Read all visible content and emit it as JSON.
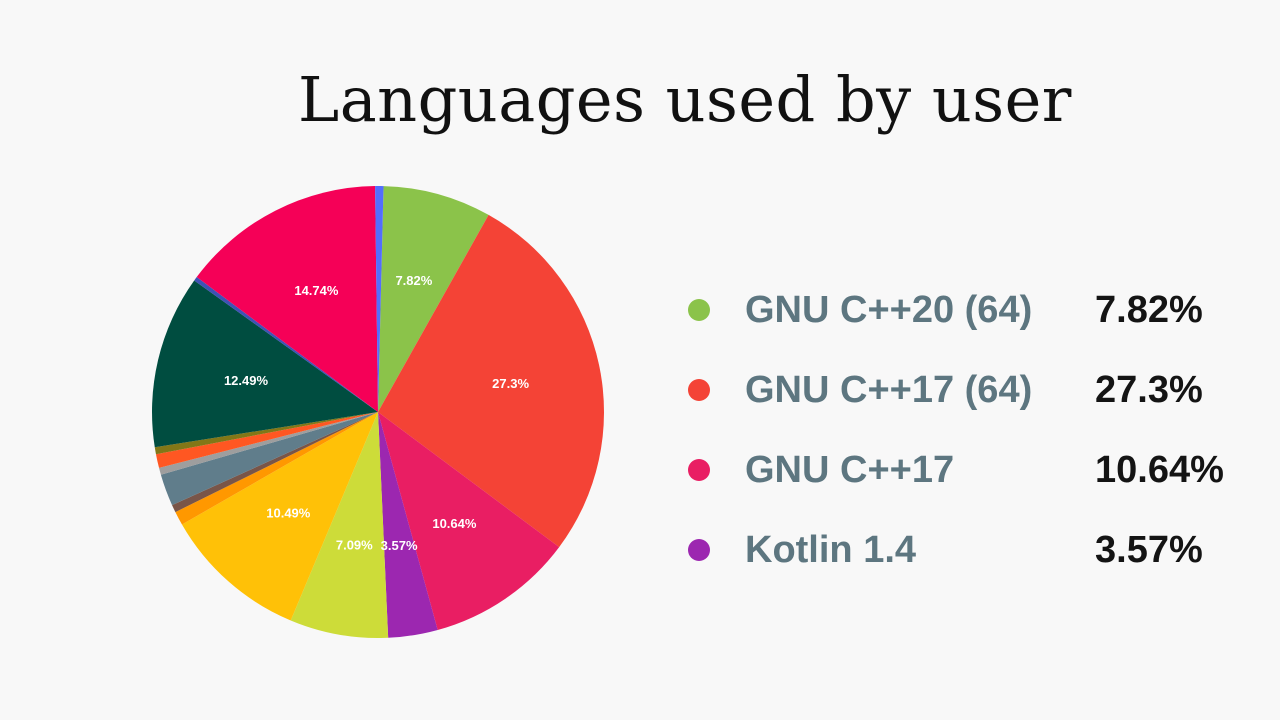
{
  "chart_data": {
    "type": "pie",
    "title": "Languages used by user",
    "slices": [
      {
        "name": "GNU C++20 (64)",
        "value": 7.82,
        "label": "7.82%",
        "color": "#8bc34a"
      },
      {
        "name": "GNU C++17 (64)",
        "value": 27.3,
        "label": "27.3%",
        "color": "#f44336"
      },
      {
        "name": "GNU C++17",
        "value": 10.64,
        "label": "10.64%",
        "color": "#e91e63"
      },
      {
        "name": "Kotlin 1.4",
        "value": 3.57,
        "label": "3.57%",
        "color": "#9c27b0"
      },
      {
        "name": "",
        "value": 7.09,
        "label": "7.09%",
        "color": "#cddc39"
      },
      {
        "name": "",
        "value": 10.49,
        "label": "10.49%",
        "color": "#ffc107"
      },
      {
        "name": "",
        "value": 1.0,
        "label": "",
        "color": "#ff9800"
      },
      {
        "name": "",
        "value": 0.55,
        "label": "",
        "color": "#795548"
      },
      {
        "name": "",
        "value": 2.3,
        "label": "",
        "color": "#607d8b"
      },
      {
        "name": "",
        "value": 0.5,
        "label": "",
        "color": "#9e9e9e"
      },
      {
        "name": "",
        "value": 1.0,
        "label": "",
        "color": "#ff5722"
      },
      {
        "name": "",
        "value": 0.5,
        "label": "",
        "color": "#827717"
      },
      {
        "name": "",
        "value": 12.49,
        "label": "12.49%",
        "color": "#004d40"
      },
      {
        "name": "",
        "value": 0.3,
        "label": "",
        "color": "#3f51b5"
      },
      {
        "name": "",
        "value": 14.74,
        "label": "14.74%",
        "color": "#f50057"
      },
      {
        "name": "",
        "value": 0.6,
        "label": "",
        "color": "#536dfe"
      }
    ],
    "legend": [
      {
        "name": "GNU C++20 (64)",
        "value": "7.82%",
        "color": "#8bc34a"
      },
      {
        "name": "GNU C++17 (64)",
        "value": "27.3%",
        "color": "#f44336"
      },
      {
        "name": "GNU C++17",
        "value": "10.64%",
        "color": "#e91e63"
      },
      {
        "name": "Kotlin 1.4",
        "value": "3.57%",
        "color": "#9c27b0"
      }
    ],
    "legend_placement": "right",
    "start_angle_deg": 88.6,
    "direction": "clockwise"
  }
}
